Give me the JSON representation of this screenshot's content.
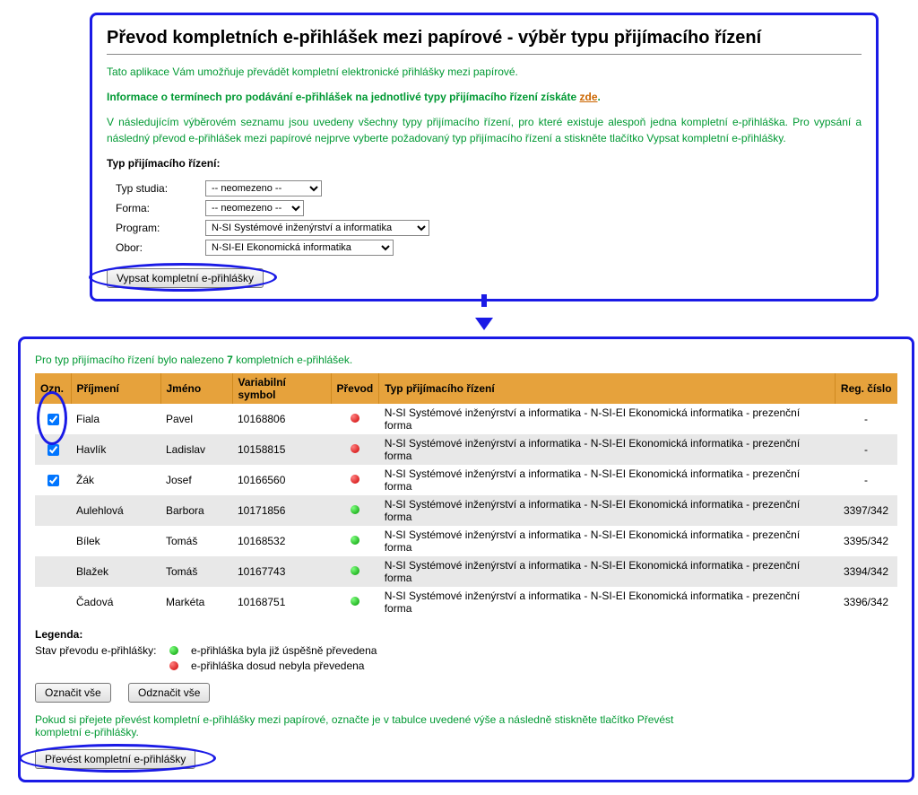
{
  "top": {
    "title": "Převod kompletních e-přihlášek mezi papírové - výběr typu přijímacího řízení",
    "intro": "Tato aplikace Vám umožňuje převádět kompletní elektronické přihlášky mezi papírové.",
    "info_prefix": "Informace o termínech pro podávání e-přihlášek na jednotlivé typy přijímacího řízení získáte ",
    "info_link": "zde",
    "info_suffix": ".",
    "desc": "V následujícím výběrovém seznamu jsou uvedeny všechny typy přijímacího řízení, pro které existuje alespoň jedna kompletní e-přihláška. Pro vypsání a následný převod e-přihlášek mezi papírové nejprve vyberte požadovaný typ přijímacího řízení a stiskněte tlačítko Vypsat kompletní e-přihlášky.",
    "filter_heading": "Typ přijímacího řízení:",
    "filters": {
      "typ_studia_label": "Typ studia:",
      "typ_studia_value": "-- neomezeno --",
      "forma_label": "Forma:",
      "forma_value": "-- neomezeno --",
      "program_label": "Program:",
      "program_value": "N-SI Systémové inženýrství a informatika",
      "obor_label": "Obor:",
      "obor_value": "N-SI-EI Ekonomická informatika"
    },
    "submit_button": "Vypsat kompletní e-přihlášky"
  },
  "bottom": {
    "found_prefix": "Pro typ přijímacího řízení bylo nalezeno ",
    "found_count": "7",
    "found_suffix": " kompletních e-přihlášek.",
    "columns": {
      "ozn": "Ozn.",
      "prijmeni": "Příjmení",
      "jmeno": "Jméno",
      "vs": "Variabilní symbol",
      "prevod": "Převod",
      "typ": "Typ přijímacího řízení",
      "reg": "Reg. číslo"
    },
    "rows": [
      {
        "checked": true,
        "prijmeni": "Fiala",
        "jmeno": "Pavel",
        "vs": "10168806",
        "status": "red",
        "typ": "N-SI Systémové inženýrství a informatika - N-SI-EI Ekonomická informatika - prezenční forma",
        "reg": "-"
      },
      {
        "checked": true,
        "prijmeni": "Havlík",
        "jmeno": "Ladislav",
        "vs": "10158815",
        "status": "red",
        "typ": "N-SI Systémové inženýrství a informatika - N-SI-EI Ekonomická informatika - prezenční forma",
        "reg": "-"
      },
      {
        "checked": true,
        "prijmeni": "Žák",
        "jmeno": "Josef",
        "vs": "10166560",
        "status": "red",
        "typ": "N-SI Systémové inženýrství a informatika - N-SI-EI Ekonomická informatika - prezenční forma",
        "reg": "-"
      },
      {
        "checked": false,
        "prijmeni": "Aulehlová",
        "jmeno": "Barbora",
        "vs": "10171856",
        "status": "green",
        "typ": "N-SI Systémové inženýrství a informatika - N-SI-EI Ekonomická informatika - prezenční forma",
        "reg": "3397/342"
      },
      {
        "checked": false,
        "prijmeni": "Bílek",
        "jmeno": "Tomáš",
        "vs": "10168532",
        "status": "green",
        "typ": "N-SI Systémové inženýrství a informatika - N-SI-EI Ekonomická informatika - prezenční forma",
        "reg": "3395/342"
      },
      {
        "checked": false,
        "prijmeni": "Blažek",
        "jmeno": "Tomáš",
        "vs": "10167743",
        "status": "green",
        "typ": "N-SI Systémové inženýrství a informatika - N-SI-EI Ekonomická informatika - prezenční forma",
        "reg": "3394/342"
      },
      {
        "checked": false,
        "prijmeni": "Čadová",
        "jmeno": "Markéta",
        "vs": "10168751",
        "status": "green",
        "typ": "N-SI Systémové inženýrství a informatika - N-SI-EI Ekonomická informatika - prezenční forma",
        "reg": "3396/342"
      }
    ],
    "legend_title": "Legenda:",
    "legend_row_label": "Stav převodu e-přihlášky:",
    "legend_green": "e-přihláška byla již úspěšně převedena",
    "legend_red": "e-přihláška dosud nebyla převedena",
    "select_all": "Označit vše",
    "deselect_all": "Odznačit vše",
    "note": "Pokud si přejete převést kompletní e-přihlášky mezi papírové, označte je v tabulce uvedené výše a následně stiskněte tlačítko Převést kompletní e-přihlášky.",
    "convert_button": "Převést kompletní e-přihlášky"
  },
  "colors": {
    "panel_border": "#1a1ae6",
    "header_bg": "#e6a23c",
    "green_text": "#009933",
    "orange_link": "#cc6600"
  }
}
